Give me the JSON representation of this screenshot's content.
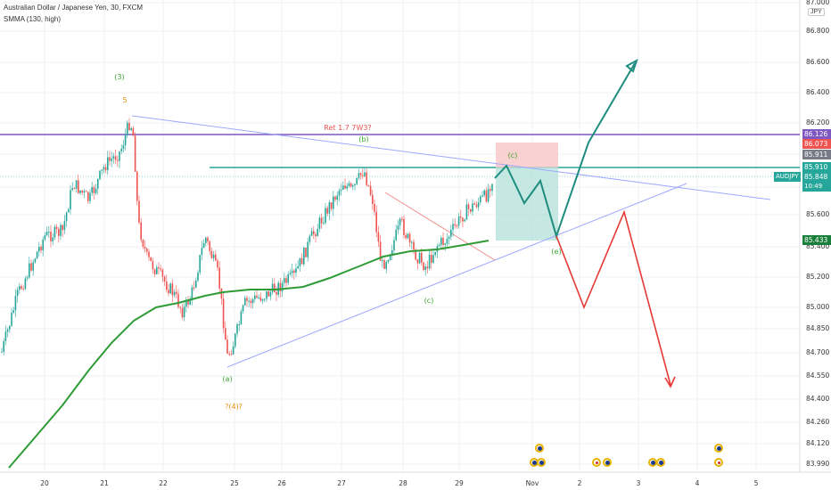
{
  "header": {
    "symbol_title": "Australian Dollar / Japanese Yen, 30, FXCM",
    "indicator": "SMMA (130, high)"
  },
  "currency_badge": "JPY",
  "price_axis": [
    "87.000",
    "86.800",
    "86.600",
    "86.400",
    "86.200",
    "86.000",
    "85.800",
    "85.600",
    "85.400",
    "85.200",
    "85.000",
    "84.850",
    "84.700",
    "84.550",
    "84.400",
    "84.260",
    "84.120",
    "83.990"
  ],
  "time_axis": [
    "20",
    "21",
    "22",
    "25",
    "26",
    "27",
    "28",
    "29",
    "Nov",
    "2",
    "3",
    "4",
    "5"
  ],
  "price_tags": {
    "resistance_high": "86.126",
    "stop": "86.073",
    "level_1": "85.911",
    "level_2": "85.910",
    "symbol": "AUDJPY",
    "last": "85.848",
    "countdown": "10:49",
    "smma": "85.433"
  },
  "wave_labels": {
    "w3": "(3)",
    "w5": "5",
    "ret": "Ret 1.7  7W3?",
    "b": "(b)",
    "c_upper": "(c)",
    "e": "(e)",
    "c_lower": "(c)",
    "a": "(a)",
    "w4": "?(4)?"
  },
  "colors": {
    "up": "#26a69a",
    "down": "#ef5350",
    "smma": "#2e9b36",
    "trendline": "#9fa8ff",
    "purple_line": "#7e57c2",
    "teal_line": "#26a69a",
    "projection_up": "#1e8c7e",
    "projection_down": "#e53935",
    "wave_green": "#3aa52e",
    "wave_orange": "#e8890c"
  }
}
